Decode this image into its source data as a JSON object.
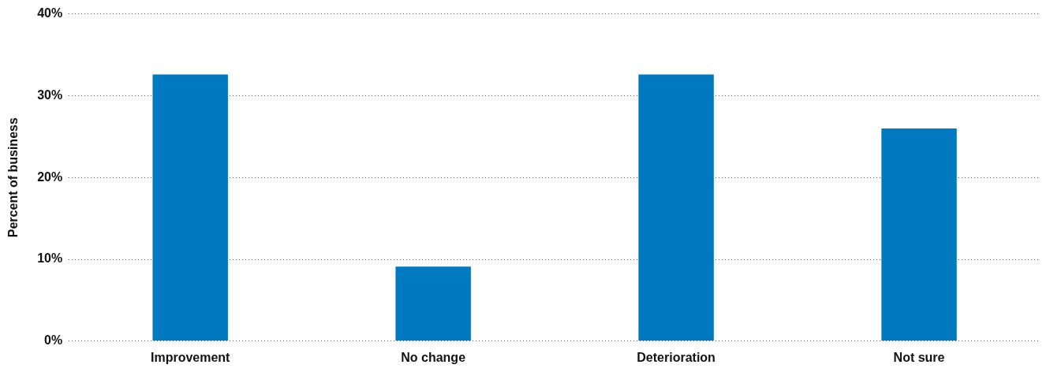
{
  "chart_data": {
    "type": "bar",
    "ylabel": "Percent of business",
    "categories": [
      "Improvement",
      "No change",
      "Deterioration",
      "Not sure"
    ],
    "values": [
      32.6,
      9.1,
      32.6,
      26.0
    ],
    "color": "#0079c1",
    "ylim": [
      0,
      40
    ],
    "yticks": [
      {
        "value": 0,
        "label": "0%"
      },
      {
        "value": 10,
        "label": "10%"
      },
      {
        "value": 20,
        "label": "20%"
      },
      {
        "value": 30,
        "label": "30%"
      },
      {
        "value": 40,
        "label": "40%"
      }
    ],
    "grid": "y",
    "legend": false
  }
}
